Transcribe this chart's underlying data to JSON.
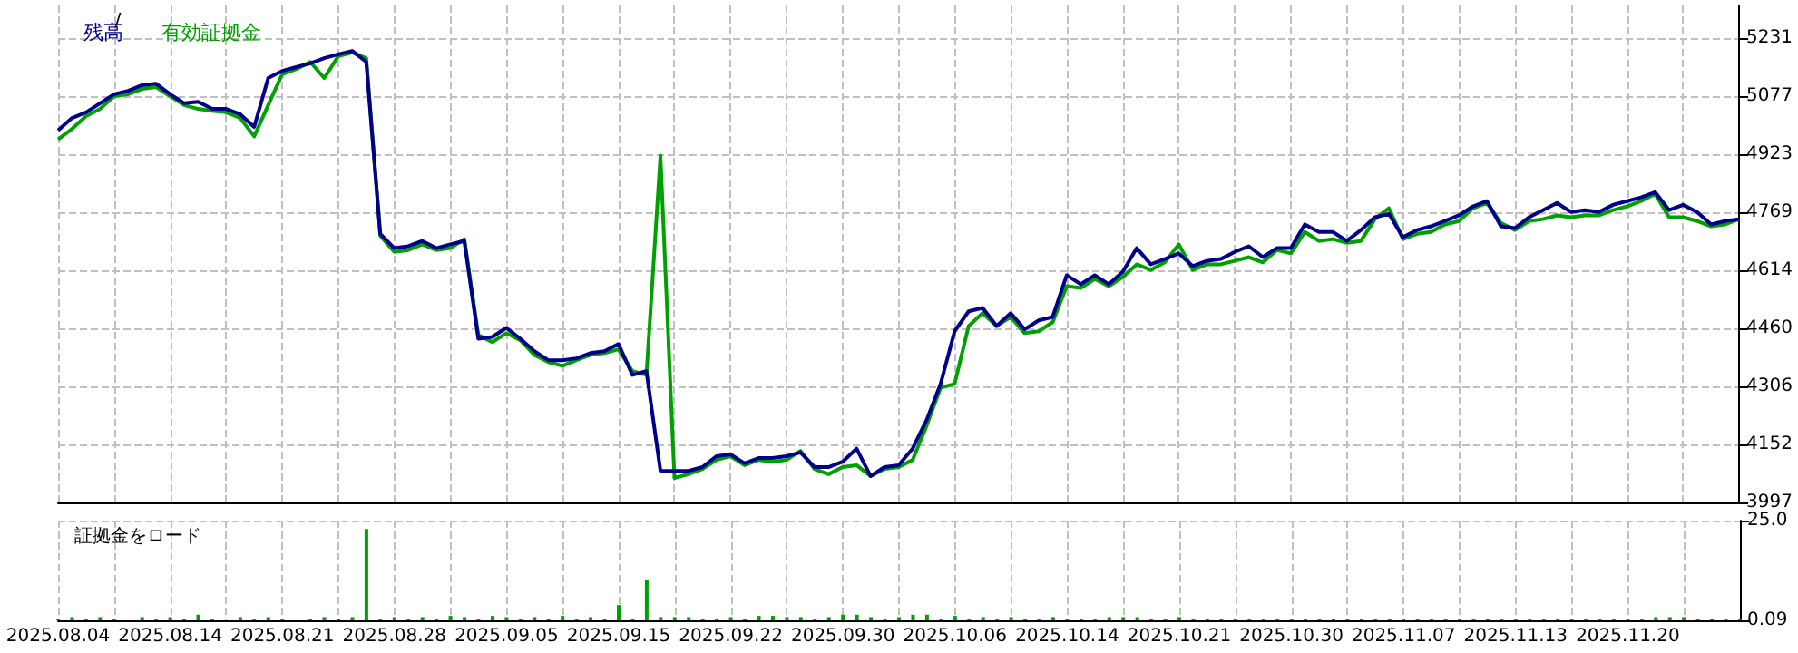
{
  "chart_data": [
    {
      "type": "line",
      "legend": "top left",
      "annotations": [
        "/"
      ],
      "grid": true,
      "tick_labels": "y",
      "ylim": [
        3997,
        5318
      ],
      "yticks": [
        3997,
        4152,
        4306,
        4460,
        4614,
        4769,
        4923,
        5077,
        5231
      ],
      "categories": [
        "2025.08.04",
        null,
        null,
        null,
        null,
        null,
        null,
        null,
        "2025.08.14",
        null,
        null,
        null,
        null,
        null,
        null,
        null,
        "2025.08.21",
        null,
        null,
        null,
        null,
        null,
        null,
        null,
        "2025.08.28",
        null,
        null,
        null,
        null,
        null,
        null,
        null,
        "2025.09.05",
        null,
        null,
        null,
        null,
        null,
        null,
        null,
        "2025.09.15",
        null,
        null,
        null,
        null,
        null,
        null,
        null,
        "2025.09.22",
        null,
        null,
        null,
        null,
        null,
        null,
        null,
        "2025.09.30",
        null,
        null,
        null,
        null,
        null,
        null,
        null,
        "2025.10.06",
        null,
        null,
        null,
        null,
        null,
        null,
        null,
        "2025.10.14",
        null,
        null,
        null,
        null,
        null,
        null,
        null,
        "2025.10.21",
        null,
        null,
        null,
        null,
        null,
        null,
        null,
        "2025.10.30",
        null,
        null,
        null,
        null,
        null,
        null,
        null,
        "2025.11.07",
        null,
        null,
        null,
        null,
        null,
        null,
        null,
        "2025.11.13",
        null,
        null,
        null,
        null,
        null,
        null,
        null,
        "2025.11.20",
        null,
        null,
        null,
        null,
        null,
        null,
        null,
        null
      ],
      "series": [
        {
          "name": "有効証拠金",
          "color": "#00a000",
          "values": [
            4962,
            4990,
            5024,
            5043,
            5077,
            5082,
            5096,
            5101,
            5077,
            5053,
            5043,
            5038,
            5034,
            5019,
            4970,
            5053,
            5135,
            5149,
            5168,
            5125,
            5183,
            5193,
            5178,
            4706,
            4663,
            4668,
            4683,
            4668,
            4673,
            4697,
            4442,
            4423,
            4447,
            4428,
            4389,
            4370,
            4360,
            4375,
            4389,
            4394,
            4404,
            4346,
            4336,
            4919,
            4062,
            4072,
            4086,
            4110,
            4120,
            4096,
            4110,
            4105,
            4110,
            4134,
            4086,
            4072,
            4091,
            4096,
            4067,
            4086,
            4091,
            4110,
            4201,
            4302,
            4312,
            4466,
            4500,
            4466,
            4490,
            4447,
            4452,
            4476,
            4572,
            4567,
            4591,
            4572,
            4596,
            4630,
            4615,
            4635,
            4683,
            4615,
            4630,
            4630,
            4639,
            4649,
            4635,
            4668,
            4659,
            4716,
            4692,
            4697,
            4687,
            4692,
            4750,
            4779,
            4697,
            4711,
            4716,
            4736,
            4745,
            4779,
            4793,
            4740,
            4721,
            4745,
            4750,
            4760,
            4755,
            4760,
            4760,
            4774,
            4784,
            4798,
            4817,
            4755,
            4755,
            4745,
            4731,
            4736,
            4750
          ]
        },
        {
          "name": "残高",
          "color": "#00008b",
          "values": [
            4986,
            5019,
            5034,
            5058,
            5082,
            5091,
            5106,
            5110,
            5082,
            5058,
            5062,
            5043,
            5043,
            5029,
            4995,
            5125,
            5144,
            5154,
            5164,
            5178,
            5188,
            5197,
            5168,
            4711,
            4673,
            4678,
            4692,
            4673,
            4683,
            4692,
            4432,
            4437,
            4461,
            4432,
            4399,
            4375,
            4375,
            4380,
            4394,
            4399,
            4418,
            4336,
            4346,
            4081,
            4081,
            4081,
            4091,
            4120,
            4125,
            4101,
            4115,
            4115,
            4120,
            4130,
            4091,
            4091,
            4105,
            4140,
            4067,
            4091,
            4096,
            4140,
            4216,
            4312,
            4452,
            4505,
            4514,
            4466,
            4500,
            4457,
            4481,
            4490,
            4601,
            4577,
            4601,
            4577,
            4610,
            4673,
            4630,
            4644,
            4659,
            4625,
            4639,
            4644,
            4663,
            4678,
            4649,
            4673,
            4673,
            4736,
            4716,
            4716,
            4692,
            4721,
            4755,
            4764,
            4702,
            4721,
            4731,
            4745,
            4760,
            4784,
            4798,
            4731,
            4726,
            4755,
            4774,
            4793,
            4769,
            4774,
            4769,
            4788,
            4798,
            4808,
            4822,
            4774,
            4788,
            4769,
            4736,
            4745,
            4750
          ]
        }
      ]
    },
    {
      "type": "bar",
      "title": "証拠金をロード",
      "grid": true,
      "color": "#00a000",
      "ylim": [
        0.09,
        25
      ],
      "yticks": [
        0.09,
        {
          "value": 25,
          "label": "25.0"
        }
      ],
      "categories": [
        "2025.08.04",
        null,
        null,
        null,
        null,
        null,
        null,
        null,
        "2025.08.14",
        null,
        null,
        null,
        null,
        null,
        null,
        null,
        "2025.08.21",
        null,
        null,
        null,
        null,
        null,
        null,
        null,
        "2025.08.28",
        null,
        null,
        null,
        null,
        null,
        null,
        null,
        "2025.09.05",
        null,
        null,
        null,
        null,
        null,
        null,
        null,
        "2025.09.15",
        null,
        null,
        null,
        null,
        null,
        null,
        null,
        "2025.09.22",
        null,
        null,
        null,
        null,
        null,
        null,
        null,
        "2025.09.30",
        null,
        null,
        null,
        null,
        null,
        null,
        null,
        "2025.10.06",
        null,
        null,
        null,
        null,
        null,
        null,
        null,
        "2025.10.14",
        null,
        null,
        null,
        null,
        null,
        null,
        null,
        "2025.10.21",
        null,
        null,
        null,
        null,
        null,
        null,
        null,
        "2025.10.30",
        null,
        null,
        null,
        null,
        null,
        null,
        null,
        "2025.11.07",
        null,
        null,
        null,
        null,
        null,
        null,
        null,
        "2025.11.13",
        null,
        null,
        null,
        null,
        null,
        null,
        null,
        "2025.11.20",
        null,
        null,
        null,
        null,
        null,
        null,
        null,
        null
      ],
      "values": [
        0.5,
        0.9,
        0.5,
        0.9,
        0.5,
        null,
        0.9,
        0.5,
        0.9,
        0.5,
        1.5,
        0.5,
        null,
        0.9,
        0.5,
        0.9,
        0.5,
        null,
        0.5,
        0.9,
        0.5,
        0.9,
        22.9,
        0.5,
        0.9,
        0.5,
        0.9,
        0.5,
        1.2,
        0.9,
        0.5,
        1.2,
        0.9,
        0.5,
        0.9,
        0.5,
        1.2,
        0.5,
        0.9,
        0.5,
        3.9,
        0.5,
        10.2,
        0.9,
        0.9,
        0.9,
        0.5,
        0.5,
        0.9,
        0.5,
        1.2,
        1.2,
        0.9,
        0.9,
        0.5,
        0.9,
        1.5,
        1.5,
        0.9,
        0.5,
        0.9,
        1.5,
        1.5,
        0.5,
        1.2,
        0.5,
        0.9,
        0.5,
        0.9,
        0.5,
        0.5,
        0.9,
        0.5,
        0.5,
        0.5,
        0.9,
        0.9,
        0.9,
        0.5,
        0.5,
        0.9,
        0.5,
        0.5,
        0.5,
        0.5,
        0.5,
        0.5,
        0.5,
        0.5,
        0.5,
        0.5,
        0.5,
        0.5,
        0.5,
        0.5,
        0.5,
        0.5,
        0.5,
        0.5,
        0.5,
        0.5,
        0.5,
        0.5,
        0.5,
        0.5,
        0.5,
        0.5,
        0.5,
        0.5,
        0.5,
        0.5,
        0.5,
        0.5,
        0.5,
        0.9,
        0.9,
        0.9,
        0.5,
        0.5,
        0.5,
        0.5
      ]
    }
  ]
}
